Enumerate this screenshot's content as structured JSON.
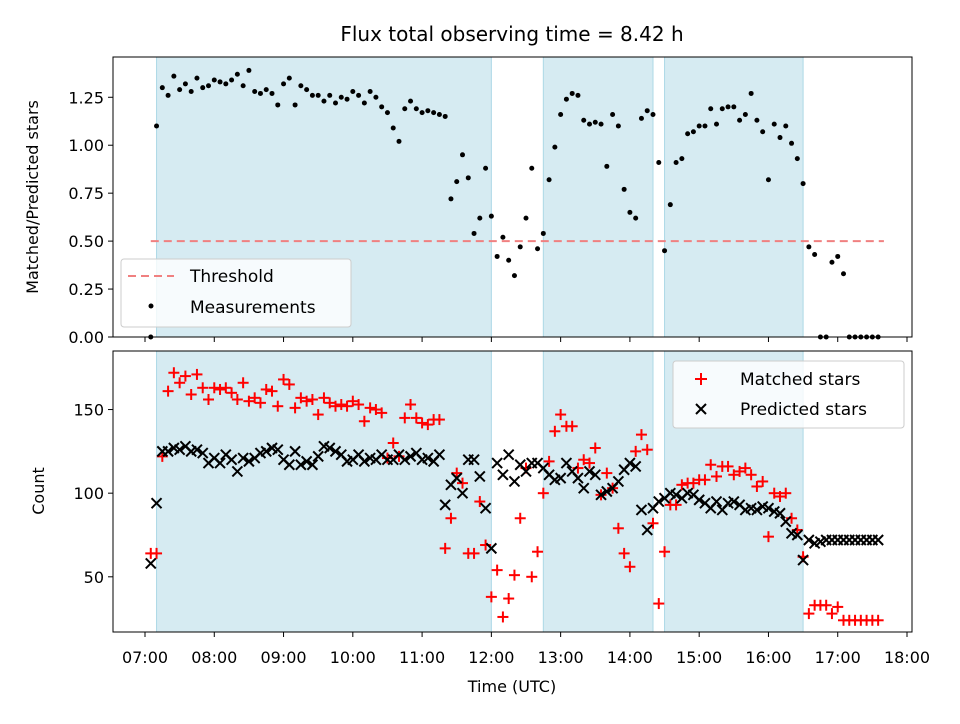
{
  "chart_data": [
    {
      "type": "scatter",
      "title": "Flux total observing time = 8.42 h",
      "ylabel": "Matched/Predicted stars",
      "xlabel": "",
      "ylim": [
        0,
        1.46
      ],
      "yticks": [
        "0.00",
        "0.25",
        "0.50",
        "0.75",
        "1.00",
        "1.25"
      ],
      "ytick_values": [
        0,
        0.25,
        0.5,
        0.75,
        1.0,
        1.25
      ],
      "threshold": {
        "name": "Threshold",
        "value": 0.5,
        "x_start": "07:05",
        "x_end": "17:40",
        "color": "#f08080"
      },
      "legend": {
        "position": "lower-left",
        "entries": [
          "Threshold",
          "Measurements"
        ]
      },
      "series": [
        {
          "name": "Measurements",
          "color": "#000000",
          "x": [
            "07:05",
            "07:10",
            "07:15",
            "07:20",
            "07:25",
            "07:30",
            "07:35",
            "07:40",
            "07:45",
            "07:50",
            "07:55",
            "08:00",
            "08:05",
            "08:10",
            "08:15",
            "08:20",
            "08:25",
            "08:30",
            "08:35",
            "08:40",
            "08:45",
            "08:50",
            "08:55",
            "09:00",
            "09:05",
            "09:10",
            "09:15",
            "09:20",
            "09:25",
            "09:30",
            "09:35",
            "09:40",
            "09:45",
            "09:50",
            "09:55",
            "10:00",
            "10:05",
            "10:10",
            "10:15",
            "10:20",
            "10:25",
            "10:30",
            "10:35",
            "10:40",
            "10:45",
            "10:50",
            "10:55",
            "11:00",
            "11:05",
            "11:10",
            "11:15",
            "11:20",
            "11:25",
            "11:30",
            "11:35",
            "11:40",
            "11:45",
            "11:50",
            "11:55",
            "12:00",
            "12:05",
            "12:10",
            "12:15",
            "12:20",
            "12:25",
            "12:30",
            "12:35",
            "12:40",
            "12:45",
            "12:50",
            "12:55",
            "13:00",
            "13:05",
            "13:10",
            "13:15",
            "13:20",
            "13:25",
            "13:30",
            "13:35",
            "13:40",
            "13:45",
            "13:50",
            "13:55",
            "14:00",
            "14:05",
            "14:10",
            "14:15",
            "14:20",
            "14:25",
            "14:30",
            "14:35",
            "14:40",
            "14:45",
            "14:50",
            "14:55",
            "15:00",
            "15:05",
            "15:10",
            "15:15",
            "15:20",
            "15:25",
            "15:30",
            "15:35",
            "15:40",
            "15:45",
            "15:50",
            "15:55",
            "16:00",
            "16:05",
            "16:10",
            "16:15",
            "16:20",
            "16:25",
            "16:30",
            "16:35",
            "16:40",
            "16:45",
            "16:50",
            "16:55",
            "17:00",
            "17:05",
            "17:10",
            "17:15",
            "17:20",
            "17:25",
            "17:30",
            "17:35"
          ],
          "values": [
            0.0,
            1.1,
            1.3,
            1.26,
            1.36,
            1.29,
            1.32,
            1.28,
            1.35,
            1.3,
            1.31,
            1.34,
            1.33,
            1.32,
            1.34,
            1.37,
            1.31,
            1.39,
            1.28,
            1.27,
            1.29,
            1.27,
            1.21,
            1.32,
            1.35,
            1.21,
            1.31,
            1.29,
            1.26,
            1.26,
            1.23,
            1.26,
            1.22,
            1.25,
            1.24,
            1.28,
            1.26,
            1.22,
            1.28,
            1.25,
            1.2,
            1.17,
            1.09,
            1.02,
            1.19,
            1.23,
            1.19,
            1.17,
            1.18,
            1.17,
            1.16,
            1.15,
            0.72,
            0.81,
            0.95,
            0.83,
            0.54,
            0.62,
            0.88,
            0.63,
            0.42,
            0.52,
            0.4,
            0.32,
            0.47,
            0.62,
            0.88,
            0.46,
            0.54,
            0.82,
            0.99,
            1.16,
            1.24,
            1.27,
            1.26,
            1.13,
            1.11,
            1.12,
            1.11,
            0.89,
            1.16,
            1.1,
            0.77,
            0.65,
            0.62,
            1.14,
            1.18,
            1.16,
            0.91,
            0.45,
            0.69,
            0.91,
            0.93,
            1.06,
            1.07,
            1.1,
            1.1,
            1.19,
            1.11,
            1.19,
            1.2,
            1.2,
            1.13,
            1.16,
            1.27,
            1.13,
            1.07,
            0.82,
            1.11,
            1.04,
            1.1,
            1.01,
            0.93,
            0.8,
            0.47,
            0.43,
            0.0,
            0.0,
            0.39,
            0.42,
            0.33,
            0.0,
            0.0,
            0.0,
            0.0,
            0.0,
            0.0
          ]
        }
      ]
    },
    {
      "type": "scatter",
      "title": "",
      "ylabel": "Count",
      "xlabel": "Time (UTC)",
      "ylim": [
        17,
        185
      ],
      "yticks": [
        "50",
        "100",
        "150"
      ],
      "ytick_values": [
        50,
        100,
        150
      ],
      "legend": {
        "position": "top-right",
        "entries": [
          "Matched stars",
          "Predicted stars"
        ]
      },
      "series": [
        {
          "name": "Matched stars",
          "marker": "plus",
          "color": "#ff0000",
          "x": [
            "07:05",
            "07:10",
            "07:15",
            "07:20",
            "07:25",
            "07:30",
            "07:35",
            "07:40",
            "07:45",
            "07:50",
            "07:55",
            "08:00",
            "08:05",
            "08:10",
            "08:15",
            "08:20",
            "08:25",
            "08:30",
            "08:35",
            "08:40",
            "08:45",
            "08:50",
            "08:55",
            "09:00",
            "09:05",
            "09:10",
            "09:15",
            "09:20",
            "09:25",
            "09:30",
            "09:35",
            "09:40",
            "09:45",
            "09:50",
            "09:55",
            "10:00",
            "10:05",
            "10:10",
            "10:15",
            "10:20",
            "10:25",
            "10:30",
            "10:35",
            "10:40",
            "10:45",
            "10:50",
            "10:55",
            "11:00",
            "11:05",
            "11:10",
            "11:15",
            "11:20",
            "11:25",
            "11:30",
            "11:35",
            "11:40",
            "11:45",
            "11:50",
            "11:55",
            "12:00",
            "12:05",
            "12:10",
            "12:15",
            "12:20",
            "12:25",
            "12:30",
            "12:35",
            "12:40",
            "12:45",
            "12:50",
            "12:55",
            "13:00",
            "13:05",
            "13:10",
            "13:15",
            "13:20",
            "13:25",
            "13:30",
            "13:35",
            "13:40",
            "13:45",
            "13:50",
            "13:55",
            "14:00",
            "14:05",
            "14:10",
            "14:15",
            "14:20",
            "14:25",
            "14:30",
            "14:35",
            "14:40",
            "14:45",
            "14:50",
            "14:55",
            "15:00",
            "15:05",
            "15:10",
            "15:15",
            "15:20",
            "15:25",
            "15:30",
            "15:35",
            "15:40",
            "15:45",
            "15:50",
            "15:55",
            "16:00",
            "16:05",
            "16:10",
            "16:15",
            "16:20",
            "16:25",
            "16:30",
            "16:35",
            "16:40",
            "16:45",
            "16:50",
            "16:55",
            "17:00",
            "17:05",
            "17:10",
            "17:15",
            "17:20",
            "17:25",
            "17:30",
            "17:35"
          ],
          "values": [
            64,
            64,
            122,
            161,
            172,
            166,
            170,
            159,
            171,
            163,
            156,
            163,
            162,
            163,
            160,
            156,
            166,
            155,
            157,
            154,
            162,
            161,
            152,
            168,
            165,
            151,
            157,
            155,
            156,
            147,
            157,
            154,
            152,
            153,
            152,
            155,
            153,
            143,
            151,
            150,
            148,
            121,
            130,
            122,
            145,
            153,
            145,
            142,
            141,
            144,
            144,
            67,
            85,
            112,
            106,
            64,
            64,
            95,
            69,
            38,
            54,
            26,
            37,
            51,
            85,
            115,
            50,
            65,
            100,
            119,
            137,
            147,
            140,
            140,
            115,
            120,
            118,
            127,
            99,
            112,
            103,
            79,
            64,
            56,
            125,
            135,
            126,
            82,
            34,
            65,
            93,
            93,
            105,
            106,
            106,
            108,
            108,
            117,
            110,
            116,
            116,
            111,
            113,
            115,
            111,
            104,
            107,
            74,
            100,
            98,
            100,
            85,
            78,
            62,
            28,
            33,
            33,
            33,
            28,
            32,
            24,
            24,
            24,
            24,
            24,
            24,
            24
          ]
        },
        {
          "name": "Predicted stars",
          "marker": "x",
          "color": "#000000",
          "x": [
            "07:05",
            "07:10",
            "07:15",
            "07:20",
            "07:25",
            "07:30",
            "07:35",
            "07:40",
            "07:45",
            "07:50",
            "07:55",
            "08:00",
            "08:05",
            "08:10",
            "08:15",
            "08:20",
            "08:25",
            "08:30",
            "08:35",
            "08:40",
            "08:45",
            "08:50",
            "08:55",
            "09:00",
            "09:05",
            "09:10",
            "09:15",
            "09:20",
            "09:25",
            "09:30",
            "09:35",
            "09:40",
            "09:45",
            "09:50",
            "09:55",
            "10:00",
            "10:05",
            "10:10",
            "10:15",
            "10:20",
            "10:25",
            "10:30",
            "10:35",
            "10:40",
            "10:45",
            "10:50",
            "10:55",
            "11:00",
            "11:05",
            "11:10",
            "11:15",
            "11:20",
            "11:25",
            "11:30",
            "11:35",
            "11:40",
            "11:45",
            "11:50",
            "11:55",
            "12:00",
            "12:05",
            "12:10",
            "12:15",
            "12:20",
            "12:25",
            "12:30",
            "12:35",
            "12:40",
            "12:45",
            "12:50",
            "12:55",
            "13:00",
            "13:05",
            "13:10",
            "13:15",
            "13:20",
            "13:25",
            "13:30",
            "13:35",
            "13:40",
            "13:45",
            "13:50",
            "13:55",
            "14:00",
            "14:05",
            "14:10",
            "14:15",
            "14:20",
            "14:25",
            "14:30",
            "14:35",
            "14:40",
            "14:45",
            "14:50",
            "14:55",
            "15:00",
            "15:05",
            "15:10",
            "15:15",
            "15:20",
            "15:25",
            "15:30",
            "15:35",
            "15:40",
            "15:45",
            "15:50",
            "15:55",
            "16:00",
            "16:05",
            "16:10",
            "16:15",
            "16:20",
            "16:25",
            "16:30",
            "16:35",
            "16:40",
            "16:45",
            "16:50",
            "16:55",
            "17:00",
            "17:05",
            "17:10",
            "17:15",
            "17:20",
            "17:25",
            "17:30",
            "17:35"
          ],
          "values": [
            58,
            94,
            125,
            125,
            127,
            126,
            128,
            125,
            126,
            124,
            118,
            121,
            118,
            123,
            120,
            113,
            121,
            119,
            121,
            124,
            125,
            127,
            126,
            120,
            117,
            125,
            117,
            119,
            117,
            122,
            128,
            127,
            125,
            123,
            119,
            120,
            123,
            119,
            121,
            120,
            123,
            120,
            120,
            123,
            120,
            122,
            124,
            120,
            121,
            119,
            123,
            93,
            105,
            109,
            100,
            120,
            120,
            110,
            91,
            67,
            118,
            111,
            123,
            107,
            117,
            113,
            118,
            118,
            115,
            111,
            108,
            109,
            118,
            113,
            109,
            103,
            113,
            111,
            99,
            101,
            103,
            107,
            114,
            118,
            116,
            90,
            78,
            91,
            95,
            97,
            100,
            99,
            97,
            100,
            99,
            96,
            94,
            91,
            95,
            90,
            94,
            95,
            93,
            90,
            91,
            90,
            92,
            91,
            89,
            88,
            83,
            76,
            75,
            60,
            72,
            70,
            71,
            72,
            72,
            72,
            72,
            72,
            72,
            72,
            72,
            72,
            72
          ],
          "values_note_removed": true
        }
      ],
      "xticks": [
        "07:00",
        "08:00",
        "09:00",
        "10:00",
        "11:00",
        "12:00",
        "13:00",
        "14:00",
        "15:00",
        "16:00",
        "17:00",
        "18:00"
      ]
    }
  ],
  "observing_spans": [
    {
      "start": "07:10",
      "end": "12:00"
    },
    {
      "start": "12:45",
      "end": "14:20"
    },
    {
      "start": "14:30",
      "end": "16:30"
    }
  ],
  "span_color": "#add8e6",
  "legend_labels": {
    "threshold": "Threshold",
    "measurements": "Measurements",
    "matched": "Matched stars",
    "predicted": "Predicted stars"
  }
}
